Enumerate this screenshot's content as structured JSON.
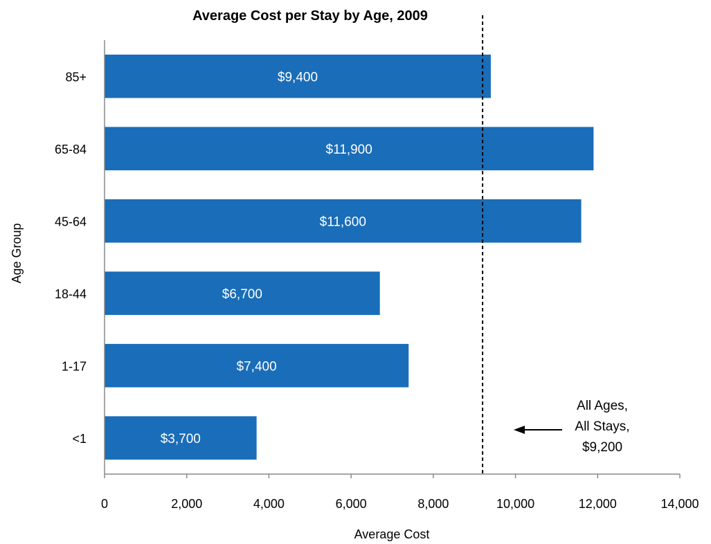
{
  "chart_data": {
    "type": "bar",
    "orientation": "horizontal",
    "title": "Average Cost per Stay by Age, 2009",
    "xlabel": "Average Cost",
    "ylabel": "Age Group",
    "categories": [
      "85+",
      "65-84",
      "45-64",
      "18-44",
      "1-17",
      "<1"
    ],
    "values": [
      9400,
      11900,
      11600,
      6700,
      7400,
      3700
    ],
    "data_labels": [
      "$9,400",
      "$11,900",
      "$11,600",
      "$6,700",
      "$7,400",
      "$3,700"
    ],
    "xlim": [
      0,
      14000
    ],
    "x_ticks": [
      0,
      2000,
      4000,
      6000,
      8000,
      10000,
      12000,
      14000
    ],
    "x_tick_labels": [
      "0",
      "2,000",
      "4,000",
      "6,000",
      "8,000",
      "10,000",
      "12,000",
      "14,000"
    ],
    "grid": false,
    "legend": "none",
    "bar_color": "#1a6db8",
    "reference_line": {
      "value": 9200,
      "style": "dashed",
      "color": "#000000"
    },
    "annotation": {
      "lines": [
        "All Ages,",
        "All Stays,",
        "$9,200"
      ],
      "arrow": "left"
    }
  }
}
